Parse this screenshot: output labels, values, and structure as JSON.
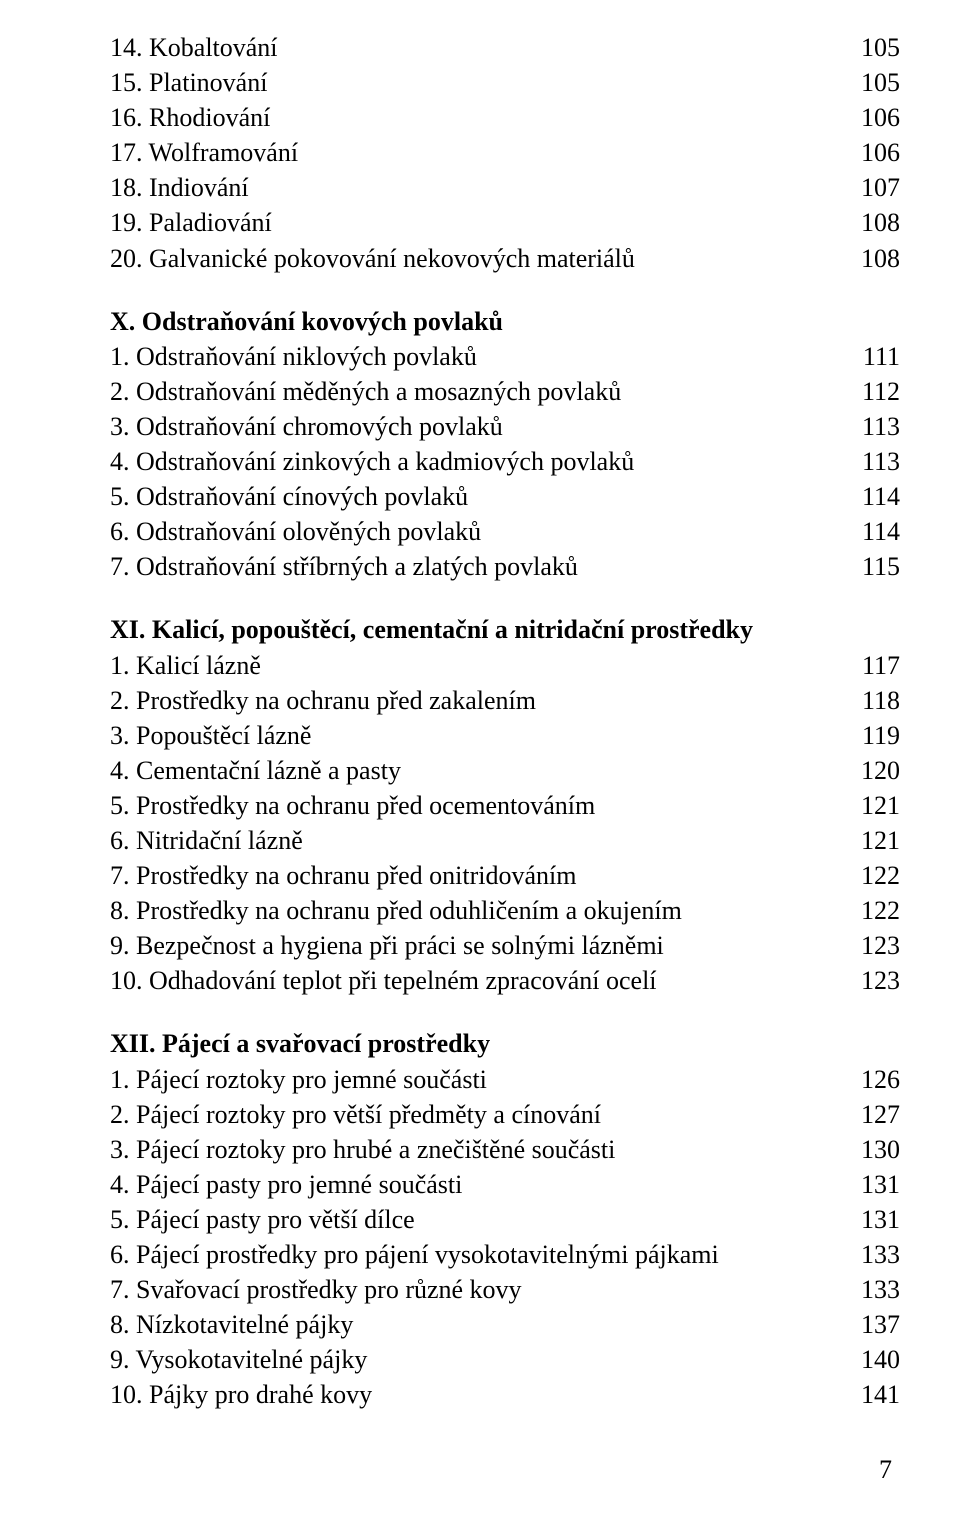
{
  "sections": [
    {
      "title": null,
      "entries": [
        {
          "num": "14.",
          "text": "Kobaltování",
          "page": "105"
        },
        {
          "num": "15.",
          "text": "Platinování",
          "page": "105"
        },
        {
          "num": "16.",
          "text": "Rhodiování",
          "page": "106"
        },
        {
          "num": "17.",
          "text": "Wolframování",
          "page": "106"
        },
        {
          "num": "18.",
          "text": "Indiování",
          "page": "107"
        },
        {
          "num": "19.",
          "text": "Paladiování",
          "page": "108"
        },
        {
          "num": "20.",
          "text": "Galvanické pokovování nekovových materiálů",
          "page": "108"
        }
      ]
    },
    {
      "title": "X. Odstraňování kovových povlaků",
      "entries": [
        {
          "num": "1.",
          "text": "Odstraňování niklových povlaků",
          "page": "111"
        },
        {
          "num": "2.",
          "text": "Odstraňování měděných a mosazných povlaků",
          "page": "112"
        },
        {
          "num": "3.",
          "text": "Odstraňování chromových povlaků",
          "page": "113"
        },
        {
          "num": "4.",
          "text": "Odstraňování zinkových a kadmiových povlaků",
          "page": "113"
        },
        {
          "num": "5.",
          "text": "Odstraňování cínových povlaků",
          "page": "114"
        },
        {
          "num": "6.",
          "text": "Odstraňování olověných povlaků",
          "page": "114"
        },
        {
          "num": "7.",
          "text": "Odstraňování stříbrných a zlatých povlaků",
          "page": "115"
        }
      ]
    },
    {
      "title": "XI. Kalicí,  popouštěcí,  cementační a nitridační prostředky",
      "entries": [
        {
          "num": "1.",
          "text": "Kalicí lázně",
          "page": "117"
        },
        {
          "num": "2.",
          "text": "Prostředky na ochranu před zakalením",
          "page": "118"
        },
        {
          "num": "3.",
          "text": "Popouštěcí lázně",
          "page": "119"
        },
        {
          "num": "4.",
          "text": "Cementační lázně a pasty",
          "page": "120"
        },
        {
          "num": "5.",
          "text": "Prostředky na ochranu před ocementováním",
          "page": "121"
        },
        {
          "num": "6.",
          "text": "Nitridační lázně",
          "page": "121"
        },
        {
          "num": "7.",
          "text": "Prostředky na ochranu před onitridováním",
          "page": "122"
        },
        {
          "num": "8.",
          "text": "Prostředky na ochranu před oduhličením a okujením",
          "page": "122"
        },
        {
          "num": "9.",
          "text": "Bezpečnost a hygiena při práci se solnými lázněmi",
          "page": "123"
        },
        {
          "num": "10.",
          "text": " Odhadování teplot při tepelném zpracování ocelí",
          "page": "123"
        }
      ]
    },
    {
      "title": "XII. Pájecí a svařovací prostředky",
      "entries": [
        {
          "num": "1.",
          "text": "Pájecí roztoky pro jemné součásti",
          "page": "126"
        },
        {
          "num": "2.",
          "text": "Pájecí roztoky pro větší předměty a cínování",
          "page": "127"
        },
        {
          "num": "3.",
          "text": "Pájecí roztoky pro hrubé a znečištěné součásti",
          "page": "130"
        },
        {
          "num": "4.",
          "text": "Pájecí pasty pro jemné součásti",
          "page": "131"
        },
        {
          "num": "5.",
          "text": "Pájecí pasty pro větší dílce",
          "page": "131"
        },
        {
          "num": "6.",
          "text": "Pájecí prostředky pro pájení vysokotavitelnými pájkami",
          "page": "133"
        },
        {
          "num": "7.",
          "text": " Svařovací prostředky pro různé kovy",
          "page": "133"
        },
        {
          "num": "8.",
          "text": " Nízkotavitelné pájky",
          "page": "137"
        },
        {
          "num": "9.",
          "text": " Vysokotavitelné pájky",
          "page": "140"
        },
        {
          "num": "10.",
          "text": "Pájky pro drahé kovy",
          "page": "141"
        }
      ]
    }
  ],
  "page_number": "7"
}
